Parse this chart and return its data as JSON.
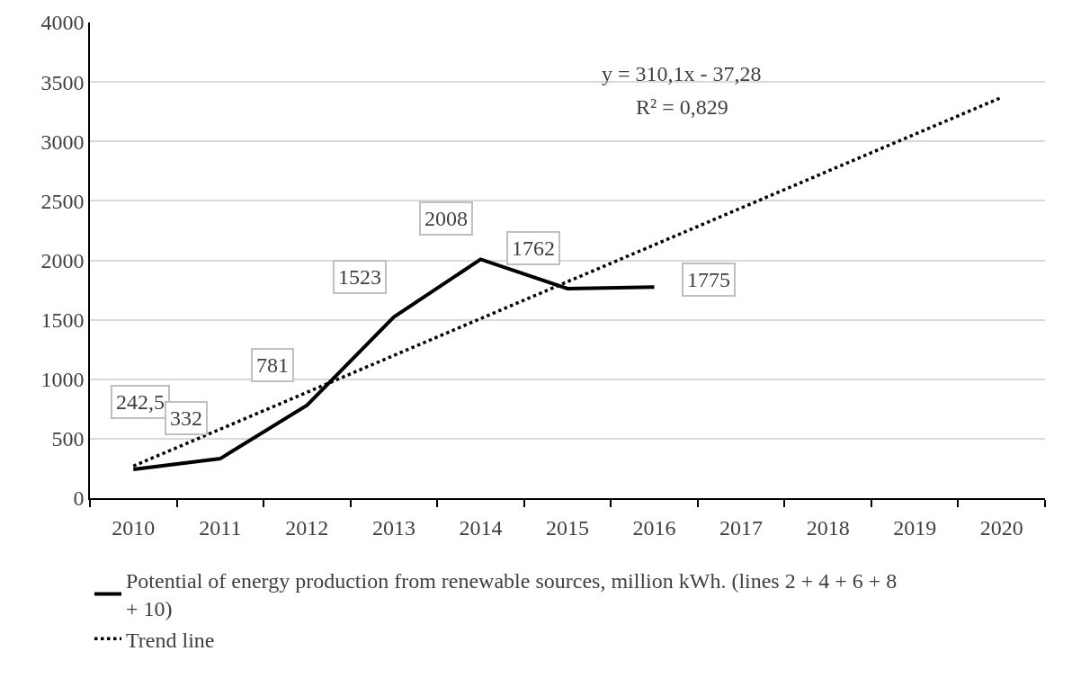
{
  "chart_data": {
    "type": "line",
    "categories": [
      "2010",
      "2011",
      "2012",
      "2013",
      "2014",
      "2015",
      "2016",
      "2017",
      "2018",
      "2019",
      "2020"
    ],
    "series": [
      {
        "name": "Potential of energy production from renewable sources, million kWh. (lines 2 + 4 + 6 + 8 + 10)",
        "color": "#000000",
        "line_style": "solid",
        "values": [
          242.5,
          332,
          781,
          1523,
          2008,
          1762,
          1775,
          null,
          null,
          null,
          null
        ],
        "value_labels": [
          "242,5",
          "332",
          "781",
          "1523",
          "2008",
          "1762",
          "1775",
          null,
          null,
          null,
          null
        ]
      },
      {
        "name": "Trend line",
        "type": "line",
        "color": "#000000",
        "line_style": "dotted",
        "values": [
          270,
          580,
          890,
          1200,
          1510,
          1820,
          2130,
          2440,
          2750,
          3060,
          3370
        ]
      }
    ],
    "annotations": [
      "y = 310,1x - 37,28",
      "R² = 0,829"
    ],
    "ylim": [
      0,
      4000
    ],
    "yticks": [
      0,
      500,
      1000,
      1500,
      2000,
      2500,
      3000,
      3500,
      4000
    ],
    "grid": "y",
    "legend": "bottom",
    "marker": "none"
  }
}
